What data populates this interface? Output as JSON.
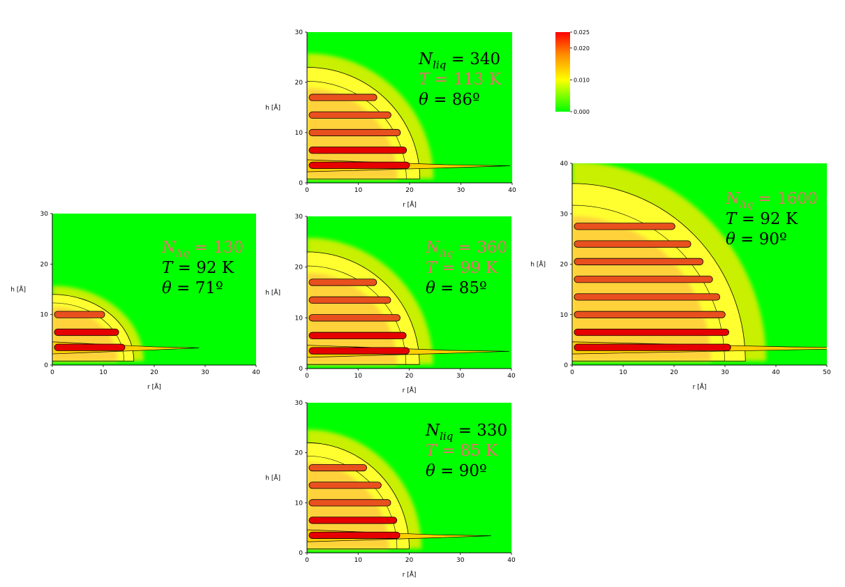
{
  "chart_data": [
    {
      "type": "heatmap",
      "id": "p340",
      "xlabel": "r [Å]",
      "ylabel": "h [Å]",
      "xlim": [
        0,
        40
      ],
      "ylim": [
        0,
        30
      ],
      "xticks": [
        0,
        10,
        20,
        30,
        40
      ],
      "yticks": [
        0,
        10,
        20,
        30
      ],
      "annotations": [
        {
          "sym": "N",
          "sub": "liq",
          "rest": " = 340",
          "color": "#000000"
        },
        {
          "sym": "T",
          "sub": "",
          "rest": " = 113 K",
          "color": "#e8706c"
        },
        {
          "sym": "θ",
          "sub": "",
          "rest": " = 86º",
          "color": "#000000"
        }
      ],
      "droplet": {
        "radius": 22,
        "height": 23,
        "layers": [
          3.5,
          6.5,
          10,
          13.5,
          17
        ]
      }
    },
    {
      "type": "heatmap",
      "id": "p130",
      "xlabel": "r [Å]",
      "ylabel": "h [Å]",
      "xlim": [
        0,
        40
      ],
      "ylim": [
        0,
        30
      ],
      "xticks": [
        0,
        10,
        20,
        30,
        40
      ],
      "yticks": [
        0,
        10,
        20,
        30
      ],
      "annotations": [
        {
          "sym": "N",
          "sub": "liq",
          "rest": " = 130",
          "color": "#e8706c"
        },
        {
          "sym": "T",
          "sub": "",
          "rest": " = 92 K",
          "color": "#000000"
        },
        {
          "sym": "θ",
          "sub": "",
          "rest": " = 71º",
          "color": "#000000"
        }
      ],
      "droplet": {
        "radius": 16,
        "height": 14,
        "layers": [
          3.5,
          6.5,
          10
        ]
      }
    },
    {
      "type": "heatmap",
      "id": "p360",
      "xlabel": "r [Å]",
      "ylabel": "h [Å]",
      "xlim": [
        0,
        40
      ],
      "ylim": [
        0,
        30
      ],
      "xticks": [
        0,
        10,
        20,
        30,
        40
      ],
      "yticks": [
        0,
        10,
        20,
        30
      ],
      "annotations": [
        {
          "sym": "N",
          "sub": "liq",
          "rest": " = 360",
          "color": "#e8706c"
        },
        {
          "sym": "T",
          "sub": "",
          "rest": " = 99 K",
          "color": "#e8706c"
        },
        {
          "sym": "θ",
          "sub": "",
          "rest": " = 85º",
          "color": "#000000"
        }
      ],
      "droplet": {
        "radius": 22,
        "height": 23,
        "layers": [
          3.5,
          6.5,
          10,
          13.5,
          17
        ]
      }
    },
    {
      "type": "heatmap",
      "id": "p1600",
      "xlabel": "r [Å]",
      "ylabel": "h [Å]",
      "xlim": [
        0,
        50
      ],
      "ylim": [
        0,
        40
      ],
      "xticks": [
        0,
        10,
        20,
        30,
        40,
        50
      ],
      "yticks": [
        0,
        10,
        20,
        30,
        40
      ],
      "annotations": [
        {
          "sym": "N",
          "sub": "liq",
          "rest": " = 1600",
          "color": "#e8706c"
        },
        {
          "sym": "T",
          "sub": "",
          "rest": " = 92 K",
          "color": "#000000"
        },
        {
          "sym": "θ",
          "sub": "",
          "rest": " = 90º",
          "color": "#000000"
        }
      ],
      "droplet": {
        "radius": 34,
        "height": 36,
        "layers": [
          3.5,
          6.5,
          10,
          13.5,
          17,
          20.5,
          24,
          27.5
        ]
      }
    },
    {
      "type": "heatmap",
      "id": "p330",
      "xlabel": "r [Å]",
      "ylabel": "h [Å]",
      "xlim": [
        0,
        40
      ],
      "ylim": [
        0,
        30
      ],
      "xticks": [
        0,
        10,
        20,
        30,
        40
      ],
      "yticks": [
        0,
        10,
        20,
        30
      ],
      "annotations": [
        {
          "sym": "N",
          "sub": "liq",
          "rest": " = 330",
          "color": "#000000"
        },
        {
          "sym": "T",
          "sub": "",
          "rest": " = 85 K",
          "color": "#e8706c"
        },
        {
          "sym": "θ",
          "sub": "",
          "rest": " = 90º",
          "color": "#000000"
        }
      ],
      "droplet": {
        "radius": 20,
        "height": 22,
        "layers": [
          3.5,
          6.5,
          10,
          13.5,
          17
        ]
      }
    }
  ],
  "colorbar": {
    "min": 0.0,
    "max": 0.025,
    "ticks": [
      "0.025",
      "0.020",
      "0.010",
      "0.000"
    ],
    "tick_values": [
      0.025,
      0.02,
      0.01,
      0.0
    ],
    "colors": [
      "#ff0000",
      "#ff8c00",
      "#ffff00",
      "#00ff00"
    ]
  }
}
